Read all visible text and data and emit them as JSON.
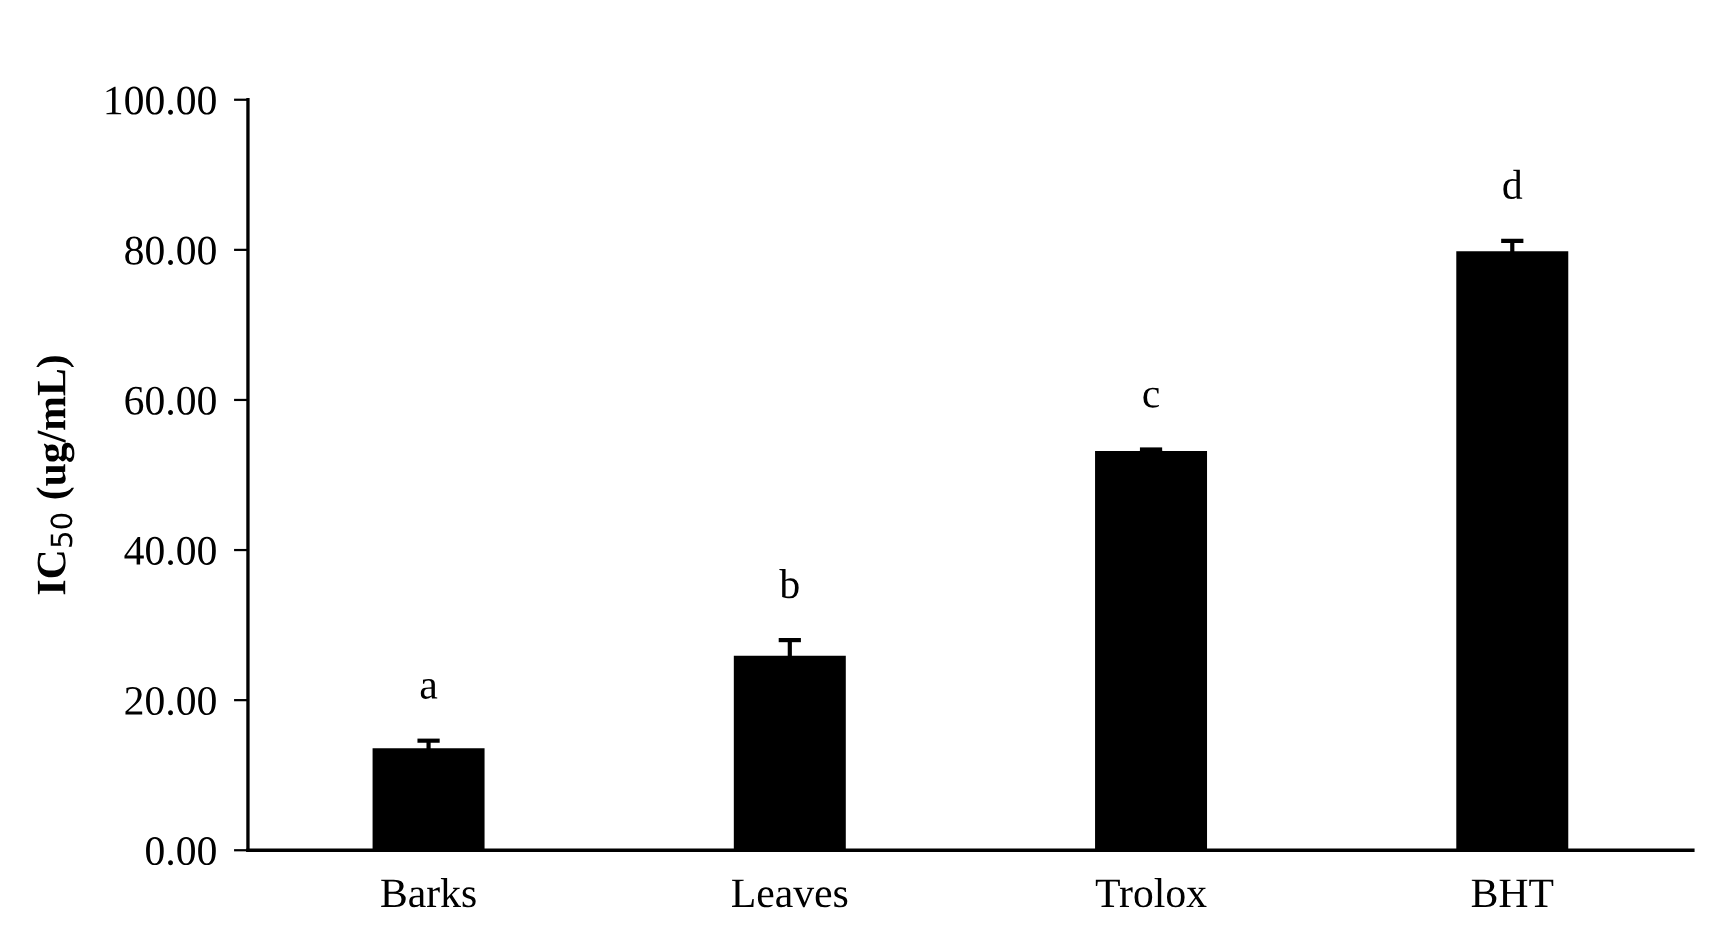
{
  "chart_data": {
    "type": "bar",
    "categories": [
      "Barks",
      "Leaves",
      "Trolox",
      "BHT"
    ],
    "values": [
      13.6,
      25.9,
      53.2,
      79.8
    ],
    "errors": [
      1.0,
      2.1,
      0.2,
      1.4
    ],
    "color": "#000000",
    "ylabel": "IC$_{50}$ (ug/mL)",
    "ylim": [
      0,
      100
    ],
    "yticks": [
      {
        "value": 0,
        "label": "0.00"
      },
      {
        "value": 20,
        "label": "20.00"
      },
      {
        "value": 40,
        "label": "40.00"
      },
      {
        "value": 60,
        "label": "60.00"
      },
      {
        "value": 80,
        "label": "80.00"
      },
      {
        "value": 100,
        "label": "100.00"
      }
    ],
    "grid": false,
    "legend": false,
    "value_labels": [
      "a",
      "b",
      "c",
      "d"
    ]
  }
}
